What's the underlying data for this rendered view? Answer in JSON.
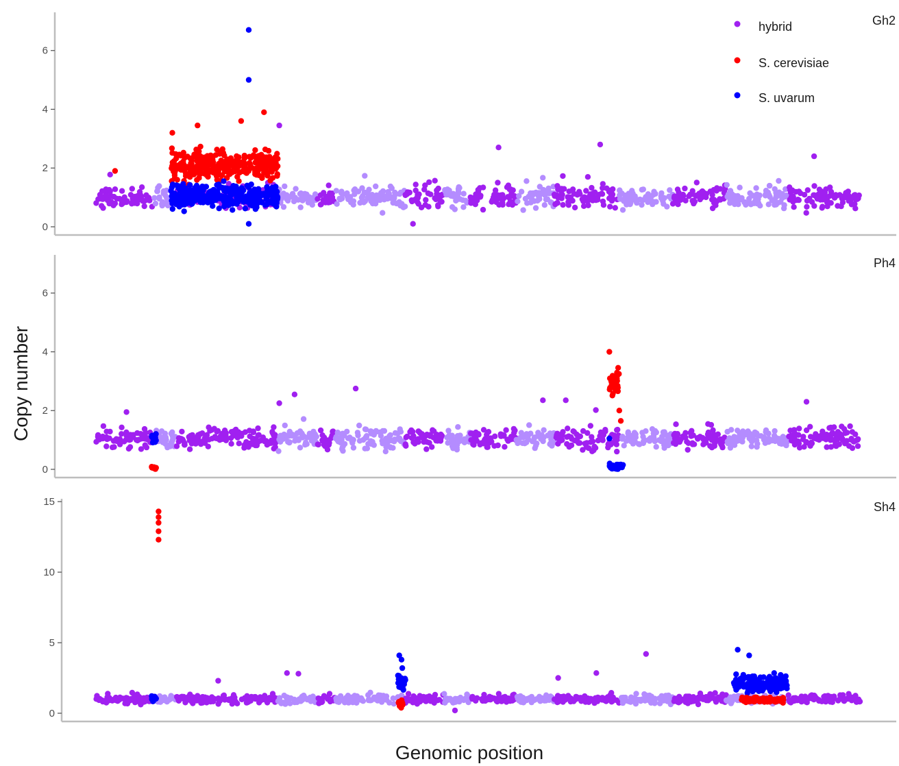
{
  "chart_data": {
    "type": "scatter",
    "xlabel": "Genomic position",
    "ylabel": "Copy number",
    "legend_position": "top-right",
    "grid": false,
    "series": [
      {
        "name": "hybrid",
        "color": "#a020f0",
        "alt_color": "#b48cff"
      },
      {
        "name": "S. cerevisiae",
        "color": "#ff0000"
      },
      {
        "name": "S. uvarum",
        "color": "#0000ff"
      }
    ],
    "chromosome_segments": [
      {
        "x": [
          0.0,
          0.075
        ],
        "shade": "dark"
      },
      {
        "x": [
          0.075,
          0.105
        ],
        "shade": "light"
      },
      {
        "x": [
          0.105,
          0.238
        ],
        "shade": "dark"
      },
      {
        "x": [
          0.238,
          0.29
        ],
        "shade": "light"
      },
      {
        "x": [
          0.29,
          0.313
        ],
        "shade": "dark"
      },
      {
        "x": [
          0.313,
          0.405
        ],
        "shade": "light"
      },
      {
        "x": [
          0.405,
          0.455
        ],
        "shade": "dark"
      },
      {
        "x": [
          0.455,
          0.49
        ],
        "shade": "light"
      },
      {
        "x": [
          0.49,
          0.55
        ],
        "shade": "dark"
      },
      {
        "x": [
          0.55,
          0.6
        ],
        "shade": "light"
      },
      {
        "x": [
          0.6,
          0.685
        ],
        "shade": "dark"
      },
      {
        "x": [
          0.685,
          0.755
        ],
        "shade": "light"
      },
      {
        "x": [
          0.755,
          0.825
        ],
        "shade": "dark"
      },
      {
        "x": [
          0.825,
          0.905
        ],
        "shade": "light"
      },
      {
        "x": [
          0.905,
          1.0
        ],
        "shade": "dark"
      }
    ],
    "facets": [
      {
        "label": "Gh2",
        "ylim": [
          0,
          7.3
        ],
        "yticks": [
          0,
          2,
          4,
          6
        ],
        "tick_labels": [
          "0",
          "2",
          "4",
          "6"
        ],
        "baseline": 1.0,
        "spread": 0.5,
        "show_legend": true,
        "regions": [
          {
            "x": [
              0.098,
              0.238
            ],
            "mean": 2.1,
            "spread": 0.6,
            "series": "S. cerevisiae"
          },
          {
            "x": [
              0.098,
              0.238
            ],
            "mean": 1.05,
            "spread": 0.45,
            "series": "S. uvarum"
          }
        ],
        "outliers": [
          {
            "x": 0.2,
            "y": 6.7,
            "series": "S. uvarum"
          },
          {
            "x": 0.2,
            "y": 5.0,
            "series": "S. uvarum"
          },
          {
            "x": 0.2,
            "y": 0.1,
            "series": "S. uvarum"
          },
          {
            "x": 0.22,
            "y": 3.9,
            "series": "S. cerevisiae"
          },
          {
            "x": 0.19,
            "y": 3.6,
            "series": "S. cerevisiae"
          },
          {
            "x": 0.1,
            "y": 3.2,
            "series": "S. cerevisiae"
          },
          {
            "x": 0.133,
            "y": 3.45,
            "series": "S. cerevisiae"
          },
          {
            "x": 0.025,
            "y": 1.9,
            "series": "S. cerevisiae"
          },
          {
            "x": 0.24,
            "y": 3.45,
            "series": "hybrid"
          },
          {
            "x": 0.66,
            "y": 2.8,
            "series": "hybrid"
          },
          {
            "x": 0.527,
            "y": 2.7,
            "series": "hybrid"
          },
          {
            "x": 0.94,
            "y": 2.4,
            "series": "hybrid"
          },
          {
            "x": 0.415,
            "y": 0.1,
            "series": "hybrid"
          }
        ]
      },
      {
        "label": "Ph4",
        "ylim": [
          0,
          7.3
        ],
        "yticks": [
          0,
          2,
          4,
          6
        ],
        "tick_labels": [
          "0",
          "2",
          "4",
          "6"
        ],
        "baseline": 1.05,
        "spread": 0.45,
        "show_legend": false,
        "regions": [
          {
            "x": [
              0.073,
              0.079
            ],
            "mean": 1.0,
            "spread": 0.25,
            "series": "S. uvarum"
          },
          {
            "x": [
              0.073,
              0.079
            ],
            "mean": 0.05,
            "spread": 0.05,
            "series": "S. cerevisiae"
          },
          {
            "x": [
              0.672,
              0.685
            ],
            "mean": 2.9,
            "spread": 0.6,
            "series": "S. cerevisiae"
          },
          {
            "x": [
              0.672,
              0.69
            ],
            "mean": 0.1,
            "spread": 0.1,
            "series": "S. uvarum"
          }
        ],
        "outliers": [
          {
            "x": 0.672,
            "y": 4.0,
            "series": "S. cerevisiae"
          },
          {
            "x": 0.685,
            "y": 2.0,
            "series": "S. cerevisiae"
          },
          {
            "x": 0.687,
            "y": 1.65,
            "series": "S. cerevisiae"
          },
          {
            "x": 0.672,
            "y": 1.05,
            "series": "S. uvarum"
          },
          {
            "x": 0.34,
            "y": 2.75,
            "series": "hybrid"
          },
          {
            "x": 0.26,
            "y": 2.55,
            "series": "hybrid"
          },
          {
            "x": 0.24,
            "y": 2.25,
            "series": "hybrid"
          },
          {
            "x": 0.585,
            "y": 2.35,
            "series": "hybrid"
          },
          {
            "x": 0.615,
            "y": 2.35,
            "series": "hybrid"
          },
          {
            "x": 0.93,
            "y": 2.3,
            "series": "hybrid"
          },
          {
            "x": 0.04,
            "y": 1.95,
            "series": "hybrid"
          }
        ]
      },
      {
        "label": "Sh4",
        "ylim": [
          0,
          15.2
        ],
        "yticks": [
          0,
          5,
          10,
          15
        ],
        "tick_labels": [
          "0",
          "5",
          "10",
          "15"
        ],
        "baseline": 1.0,
        "spread": 0.4,
        "show_legend": false,
        "regions": [
          {
            "x": [
              0.073,
              0.079
            ],
            "mean": 1.1,
            "spread": 0.3,
            "series": "S. uvarum"
          },
          {
            "x": [
              0.395,
              0.405
            ],
            "mean": 2.1,
            "spread": 0.8,
            "series": "S. uvarum"
          },
          {
            "x": [
              0.396,
              0.402
            ],
            "mean": 0.7,
            "spread": 0.3,
            "series": "S. cerevisiae"
          },
          {
            "x": [
              0.835,
              0.905
            ],
            "mean": 2.1,
            "spread": 0.8,
            "series": "S. uvarum"
          },
          {
            "x": [
              0.845,
              0.9
            ],
            "mean": 0.95,
            "spread": 0.2,
            "series": "S. cerevisiae"
          }
        ],
        "outliers": [
          {
            "x": 0.082,
            "y": 14.3,
            "series": "S. cerevisiae"
          },
          {
            "x": 0.082,
            "y": 13.9,
            "series": "S. cerevisiae"
          },
          {
            "x": 0.082,
            "y": 13.5,
            "series": "S. cerevisiae"
          },
          {
            "x": 0.082,
            "y": 12.9,
            "series": "S. cerevisiae"
          },
          {
            "x": 0.082,
            "y": 12.3,
            "series": "S. cerevisiae"
          },
          {
            "x": 0.397,
            "y": 4.1,
            "series": "S. uvarum"
          },
          {
            "x": 0.4,
            "y": 3.8,
            "series": "S. uvarum"
          },
          {
            "x": 0.401,
            "y": 3.2,
            "series": "S. uvarum"
          },
          {
            "x": 0.84,
            "y": 4.5,
            "series": "S. uvarum"
          },
          {
            "x": 0.855,
            "y": 4.1,
            "series": "S. uvarum"
          },
          {
            "x": 0.72,
            "y": 4.2,
            "series": "hybrid"
          },
          {
            "x": 0.25,
            "y": 2.85,
            "series": "hybrid"
          },
          {
            "x": 0.265,
            "y": 2.8,
            "series": "hybrid"
          },
          {
            "x": 0.655,
            "y": 2.85,
            "series": "hybrid"
          },
          {
            "x": 0.605,
            "y": 2.5,
            "series": "hybrid"
          },
          {
            "x": 0.16,
            "y": 2.3,
            "series": "hybrid"
          },
          {
            "x": 0.47,
            "y": 0.2,
            "series": "hybrid"
          }
        ]
      }
    ]
  }
}
